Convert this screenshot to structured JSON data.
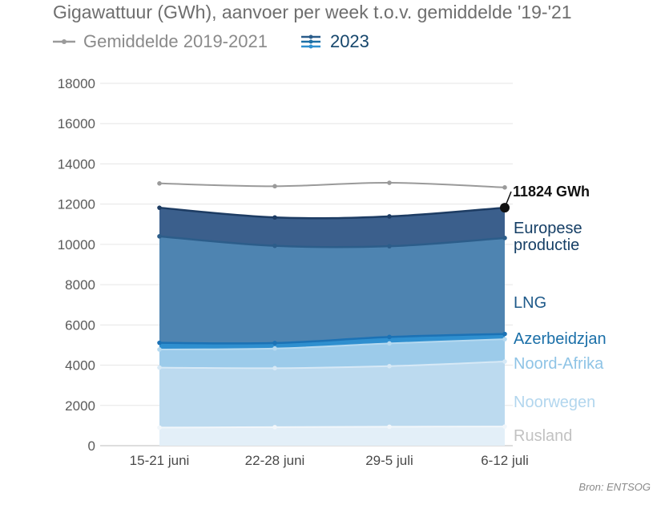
{
  "title": "Gigawattuur (GWh), aanvoer per week t.o.v. gemiddelde '19-'21",
  "legend": {
    "average_label": "Gemiddelde 2019-2021",
    "current_label": "2023",
    "average_color": "#9a9a9a",
    "current_color": "#1d6fa5"
  },
  "source": "Bron: ENTSOG",
  "chart_data": {
    "type": "area",
    "stacked": true,
    "title": "Gigawattuur (GWh), aanvoer per week t.o.v. gemiddelde '19-'21",
    "categories": [
      "15-21 juni",
      "22-28 juni",
      "29-5 juli",
      "6-12 juli"
    ],
    "ylim": [
      0,
      18000
    ],
    "yticks": [
      0,
      2000,
      4000,
      6000,
      8000,
      10000,
      12000,
      14000,
      16000,
      18000
    ],
    "grid": true,
    "series": [
      {
        "name": "Rusland",
        "values": [
          900,
          920,
          940,
          950
        ],
        "color": "#e3eff8",
        "label_color": "#c2c2c2"
      },
      {
        "name": "Noorwegen",
        "values": [
          2980,
          2930,
          3010,
          3230
        ],
        "color": "#bcdaef",
        "label_color": "#b2d6ee"
      },
      {
        "name": "Noord-Afrika",
        "values": [
          900,
          980,
          1130,
          1110
        ],
        "color": "#9ccbea",
        "label_color": "#8fc4e6"
      },
      {
        "name": "Azerbeidzjan",
        "values": [
          330,
          270,
          320,
          260
        ],
        "color": "#2f8fcf",
        "label_color": "#1a6fa8"
      },
      {
        "name": "LNG",
        "values": [
          5290,
          4830,
          4510,
          4770
        ],
        "color": "#4e84b1",
        "label_color": "#1f5a8a"
      },
      {
        "name": "Europese productie",
        "values": [
          1420,
          1410,
          1480,
          1504
        ],
        "color": "#3b5f8c",
        "label_color": "#163f66"
      }
    ],
    "average": {
      "name": "Gemiddelde 2019-2021",
      "values": [
        13030,
        12890,
        13060,
        12830
      ],
      "color": "#9a9a9a"
    },
    "total_annotation": "11824 GWh"
  }
}
